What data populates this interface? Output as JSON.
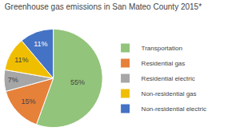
{
  "chart_data": {
    "type": "pie",
    "title": "Greenhouse gas emissions in San Mateo County 2015*",
    "categories": [
      "Transportation",
      "Residential gas",
      "Residential electric",
      "Non-residential gas",
      "Non-residential electric"
    ],
    "values": [
      55,
      15,
      7,
      11,
      11
    ],
    "value_labels": [
      "55%",
      "15%",
      "7%",
      "11%",
      "11%"
    ],
    "colors": [
      "#92c47b",
      "#e6813a",
      "#a6a6a6",
      "#f0be00",
      "#4472c4"
    ],
    "data_labels": true,
    "legend": "right"
  }
}
